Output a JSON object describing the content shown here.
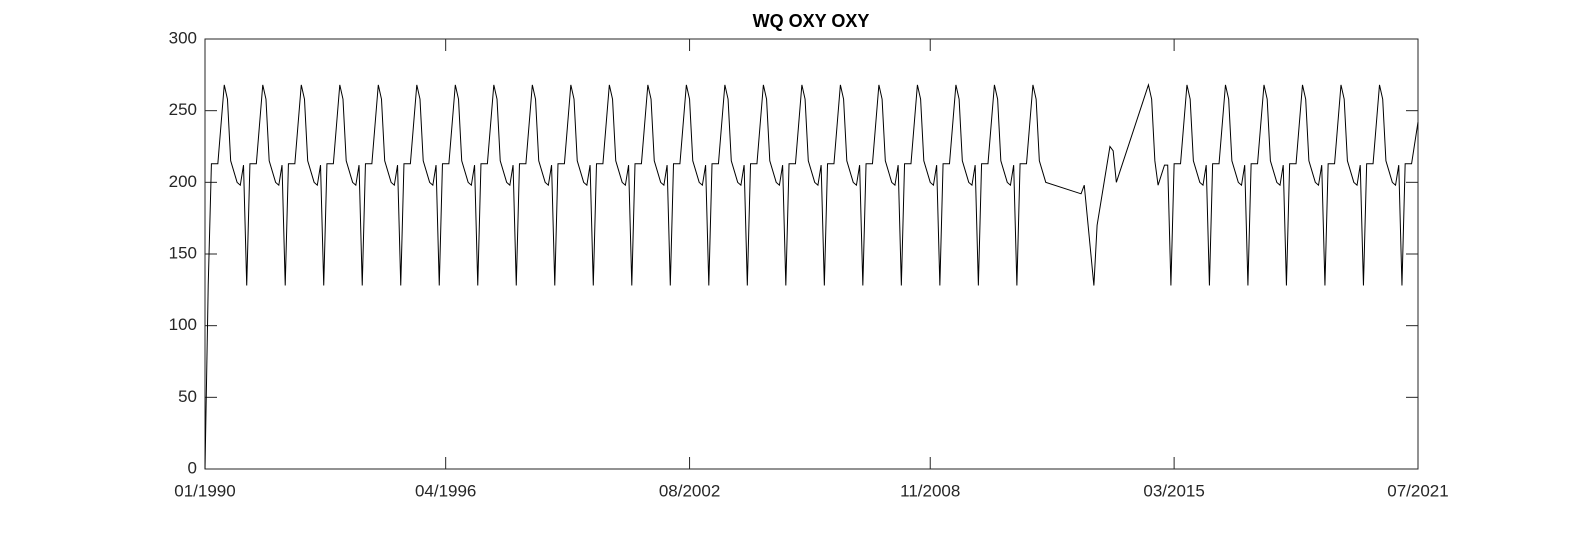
{
  "chart_data": {
    "type": "line",
    "title": "WQ OXY OXY",
    "series": [
      {
        "name": "OXY",
        "color": "#000000",
        "x": [
          "1990-01",
          "1990-02",
          "1990-03",
          "1990-05",
          "1990-07",
          "1990-08",
          "1990-09",
          "1990-11",
          "1990-12",
          "1991-01",
          "1991-02",
          "1991-03",
          "1991-05",
          "1991-07",
          "1991-08",
          "1991-09",
          "1991-11",
          "1991-12",
          "1992-01",
          "1992-02",
          "1992-03",
          "1992-05",
          "1992-07",
          "1992-08",
          "1992-09",
          "1992-11",
          "1992-12",
          "1993-01",
          "1993-02",
          "1993-03",
          "1993-05",
          "1993-07",
          "1993-08",
          "1993-09",
          "1993-11",
          "1993-12",
          "1994-01",
          "1994-02",
          "1994-03",
          "1994-05",
          "1994-07",
          "1994-08",
          "1994-09",
          "1994-11",
          "1994-12",
          "1995-01",
          "1995-02",
          "1995-03",
          "1995-05",
          "1995-07",
          "1995-08",
          "1995-09",
          "1995-11",
          "1995-12",
          "1996-01",
          "1996-02",
          "1996-03",
          "1996-05",
          "1996-07",
          "1996-08",
          "1996-09",
          "1996-11",
          "1996-12",
          "1997-01",
          "1997-02",
          "1997-03",
          "1997-05",
          "1997-07",
          "1997-08",
          "1997-09",
          "1997-11",
          "1997-12",
          "1998-01",
          "1998-02",
          "1998-03",
          "1998-05",
          "1998-07",
          "1998-08",
          "1998-09",
          "1998-11",
          "1998-12",
          "1999-01",
          "1999-02",
          "1999-03",
          "1999-05",
          "1999-07",
          "1999-08",
          "1999-09",
          "1999-11",
          "1999-12",
          "2000-01",
          "2000-02",
          "2000-03",
          "2000-05",
          "2000-07",
          "2000-08",
          "2000-09",
          "2000-11",
          "2000-12",
          "2001-01",
          "2001-02",
          "2001-03",
          "2001-05",
          "2001-07",
          "2001-08",
          "2001-09",
          "2001-11",
          "2001-12",
          "2002-01",
          "2002-02",
          "2002-03",
          "2002-05",
          "2002-07",
          "2002-08",
          "2002-09",
          "2002-11",
          "2002-12",
          "2003-01",
          "2003-02",
          "2003-03",
          "2003-05",
          "2003-07",
          "2003-08",
          "2003-09",
          "2003-11",
          "2003-12",
          "2004-01",
          "2004-02",
          "2004-03",
          "2004-05",
          "2004-07",
          "2004-08",
          "2004-09",
          "2004-11",
          "2004-12",
          "2005-01",
          "2005-02",
          "2005-03",
          "2005-05",
          "2005-07",
          "2005-08",
          "2005-09",
          "2005-11",
          "2005-12",
          "2006-01",
          "2006-02",
          "2006-03",
          "2006-05",
          "2006-07",
          "2006-08",
          "2006-09",
          "2006-11",
          "2006-12",
          "2007-01",
          "2007-02",
          "2007-03",
          "2007-05",
          "2007-07",
          "2007-08",
          "2007-09",
          "2007-11",
          "2007-12",
          "2008-01",
          "2008-02",
          "2008-03",
          "2008-05",
          "2008-07",
          "2008-08",
          "2008-09",
          "2008-11",
          "2008-12",
          "2009-01",
          "2009-02",
          "2009-03",
          "2009-05",
          "2009-07",
          "2009-08",
          "2009-09",
          "2009-11",
          "2009-12",
          "2010-01",
          "2010-02",
          "2010-03",
          "2010-05",
          "2010-07",
          "2010-08",
          "2010-09",
          "2010-11",
          "2010-12",
          "2011-01",
          "2011-02",
          "2011-03",
          "2011-05",
          "2011-07",
          "2011-08",
          "2011-09",
          "2011-11",
          "2012-10",
          "2012-11",
          "2013-02",
          "2013-03",
          "2013-07",
          "2013-08",
          "2013-09",
          "2014-07",
          "2014-08",
          "2014-09",
          "2014-10",
          "2014-12",
          "2015-01",
          "2015-02",
          "2015-03",
          "2015-05",
          "2015-07",
          "2015-08",
          "2015-09",
          "2015-11",
          "2015-12",
          "2016-01",
          "2016-02",
          "2016-03",
          "2016-05",
          "2016-07",
          "2016-08",
          "2016-09",
          "2016-11",
          "2016-12",
          "2017-01",
          "2017-02",
          "2017-03",
          "2017-05",
          "2017-07",
          "2017-08",
          "2017-09",
          "2017-11",
          "2017-12",
          "2018-01",
          "2018-02",
          "2018-03",
          "2018-05",
          "2018-07",
          "2018-08",
          "2018-09",
          "2018-11",
          "2018-12",
          "2019-01",
          "2019-02",
          "2019-03",
          "2019-05",
          "2019-07",
          "2019-08",
          "2019-09",
          "2019-11",
          "2019-12",
          "2020-01",
          "2020-02",
          "2020-03",
          "2020-05",
          "2020-07",
          "2020-08",
          "2020-09",
          "2020-11",
          "2020-12",
          "2021-01",
          "2021-02",
          "2021-03",
          "2021-05",
          "2021-07"
        ],
        "values": [
          0,
          128,
          213,
          213,
          268,
          258,
          215,
          200,
          198,
          212,
          128,
          213,
          213,
          268,
          258,
          215,
          200,
          198,
          212,
          128,
          213,
          213,
          268,
          258,
          215,
          200,
          198,
          212,
          128,
          213,
          213,
          268,
          258,
          215,
          200,
          198,
          212,
          128,
          213,
          213,
          268,
          258,
          215,
          200,
          198,
          212,
          128,
          213,
          213,
          268,
          258,
          215,
          200,
          198,
          212,
          128,
          213,
          213,
          268,
          258,
          215,
          200,
          198,
          212,
          128,
          213,
          213,
          268,
          258,
          215,
          200,
          198,
          212,
          128,
          213,
          213,
          268,
          258,
          215,
          200,
          198,
          212,
          128,
          213,
          213,
          268,
          258,
          215,
          200,
          198,
          212,
          128,
          213,
          213,
          268,
          258,
          215,
          200,
          198,
          212,
          128,
          213,
          213,
          268,
          258,
          215,
          200,
          198,
          212,
          128,
          213,
          213,
          268,
          258,
          215,
          200,
          198,
          212,
          128,
          213,
          213,
          268,
          258,
          215,
          200,
          198,
          212,
          128,
          213,
          213,
          268,
          258,
          215,
          200,
          198,
          212,
          128,
          213,
          213,
          268,
          258,
          215,
          200,
          198,
          212,
          128,
          213,
          213,
          268,
          258,
          215,
          200,
          198,
          212,
          128,
          213,
          213,
          268,
          258,
          215,
          200,
          198,
          212,
          128,
          213,
          213,
          268,
          258,
          215,
          200,
          198,
          212,
          128,
          213,
          213,
          268,
          258,
          215,
          200,
          198,
          212,
          128,
          213,
          213,
          268,
          258,
          215,
          200,
          198,
          212,
          128,
          213,
          213,
          268,
          258,
          215,
          200,
          192,
          198,
          128,
          170,
          225,
          222,
          200,
          268,
          258,
          215,
          198,
          212,
          212,
          128,
          213,
          213,
          268,
          258,
          215,
          200,
          198,
          212,
          128,
          213,
          213,
          268,
          258,
          215,
          200,
          198,
          212,
          128,
          213,
          213,
          268,
          258,
          215,
          200,
          198,
          212,
          128,
          213,
          213,
          268,
          258,
          215,
          200,
          198,
          212,
          128,
          213,
          213,
          268,
          258,
          215,
          200,
          198,
          212,
          128,
          213,
          213,
          268,
          258,
          215,
          200,
          198,
          212,
          128,
          213,
          213,
          242
        ]
      }
    ],
    "xlim": [
      "1990-01",
      "2021-07"
    ],
    "xticks": [
      {
        "value": "1990-01",
        "label": "01/1990"
      },
      {
        "value": "1996-04",
        "label": "04/1996"
      },
      {
        "value": "2002-08",
        "label": "08/2002"
      },
      {
        "value": "2008-11",
        "label": "11/2008"
      },
      {
        "value": "2015-03",
        "label": "03/2015"
      },
      {
        "value": "2021-07",
        "label": "07/2021"
      }
    ],
    "ylim": [
      0,
      300
    ],
    "yticks": [
      0,
      50,
      100,
      150,
      200,
      250,
      300
    ],
    "grid": false
  }
}
